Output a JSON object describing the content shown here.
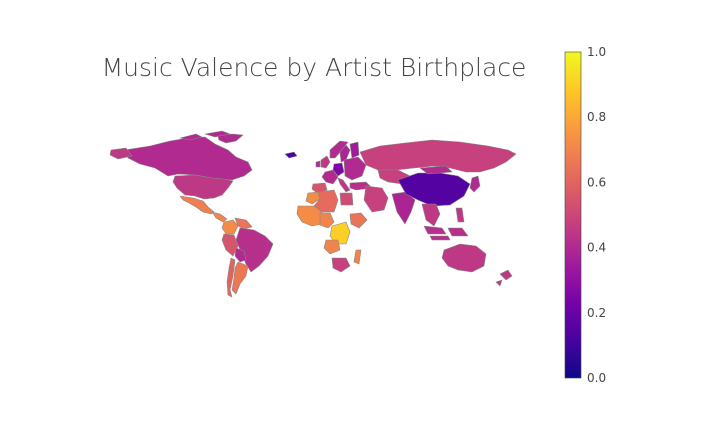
{
  "chart_data": {
    "type": "choropleth",
    "title": "Music Valence by Artist Birthplace",
    "colorscale": "plasma",
    "colorbar": {
      "range": [
        0,
        1
      ],
      "ticks": [
        "0.0",
        "0.2",
        "0.4",
        "0.6",
        "0.8",
        "1.0"
      ],
      "stops": [
        "#0d0887",
        "#46039f",
        "#7201a8",
        "#9c179e",
        "#bd3786",
        "#d8576b",
        "#ed7953",
        "#fb9f3a",
        "#fdca26",
        "#f0f921"
      ]
    },
    "regions": [
      {
        "name": "Canada",
        "value": 0.4
      },
      {
        "name": "Greenland",
        "value": 0.4
      },
      {
        "name": "United States",
        "value": 0.45
      },
      {
        "name": "Mexico",
        "value": 0.68
      },
      {
        "name": "Central America",
        "value": 0.7
      },
      {
        "name": "Colombia",
        "value": 0.72
      },
      {
        "name": "Venezuela",
        "value": 0.65
      },
      {
        "name": "Brazil",
        "value": 0.42
      },
      {
        "name": "Peru",
        "value": 0.55
      },
      {
        "name": "Bolivia",
        "value": 0.4
      },
      {
        "name": "Argentina",
        "value": 0.66
      },
      {
        "name": "Chile",
        "value": 0.6
      },
      {
        "name": "United Kingdom",
        "value": 0.45
      },
      {
        "name": "Ireland",
        "value": 0.4
      },
      {
        "name": "Iceland",
        "value": 0.12
      },
      {
        "name": "Norway",
        "value": 0.4
      },
      {
        "name": "Sweden",
        "value": 0.38
      },
      {
        "name": "Finland",
        "value": 0.35
      },
      {
        "name": "France",
        "value": 0.4
      },
      {
        "name": "Spain",
        "value": 0.55
      },
      {
        "name": "Germany",
        "value": 0.25
      },
      {
        "name": "Italy",
        "value": 0.45
      },
      {
        "name": "Eastern Europe",
        "value": 0.4
      },
      {
        "name": "Russia",
        "value": 0.48
      },
      {
        "name": "Kazakhstan",
        "value": 0.48
      },
      {
        "name": "Turkey",
        "value": 0.42
      },
      {
        "name": "Morocco",
        "value": 0.72
      },
      {
        "name": "Algeria",
        "value": 0.62
      },
      {
        "name": "West Africa",
        "value": 0.72
      },
      {
        "name": "Nigeria",
        "value": 0.7
      },
      {
        "name": "Egypt",
        "value": 0.52
      },
      {
        "name": "Ethiopia",
        "value": 0.65
      },
      {
        "name": "Congo",
        "value": 0.9
      },
      {
        "name": "Angola",
        "value": 0.7
      },
      {
        "name": "South Africa",
        "value": 0.48
      },
      {
        "name": "Madagascar",
        "value": 0.7
      },
      {
        "name": "Middle East",
        "value": 0.48
      },
      {
        "name": "India",
        "value": 0.38
      },
      {
        "name": "China",
        "value": 0.15
      },
      {
        "name": "Mongolia",
        "value": 0.4
      },
      {
        "name": "Japan",
        "value": 0.4
      },
      {
        "name": "Southeast Asia",
        "value": 0.45
      },
      {
        "name": "Indonesia",
        "value": 0.42
      },
      {
        "name": "Philippines",
        "value": 0.45
      },
      {
        "name": "Australia",
        "value": 0.45
      },
      {
        "name": "New Zealand",
        "value": 0.45
      }
    ]
  }
}
